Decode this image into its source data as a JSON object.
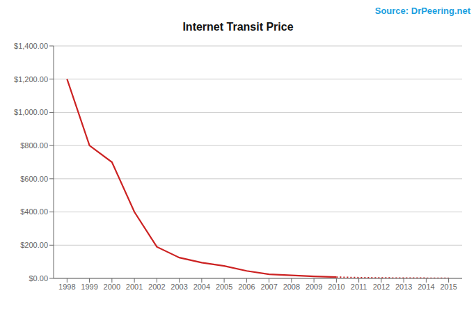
{
  "chart_data": {
    "type": "line",
    "title": "Internet Transit Price",
    "annotations": [
      {
        "text": "Source: DrPeering.net",
        "color": "#1a9fe0"
      }
    ],
    "x": [
      1998,
      1999,
      2000,
      2001,
      2002,
      2003,
      2004,
      2005,
      2006,
      2007,
      2008,
      2009,
      2010,
      2011,
      2012,
      2013,
      2014,
      2015
    ],
    "series": [
      {
        "color": "#cc2222",
        "line_style": "solid",
        "values": [
          1200,
          800,
          700,
          400,
          190,
          125,
          95,
          75,
          45,
          25,
          18,
          12,
          8,
          null,
          null,
          null,
          null,
          null
        ]
      },
      {
        "color": "#cc2222",
        "line_style": "dotted",
        "values": [
          null,
          null,
          null,
          null,
          null,
          null,
          null,
          null,
          null,
          null,
          null,
          null,
          8,
          5,
          3.5,
          2.5,
          2.0,
          1.5
        ]
      }
    ],
    "xlim": [
      1997.4,
      2015.6
    ],
    "xticks": [
      1998,
      1999,
      2000,
      2001,
      2002,
      2003,
      2004,
      2005,
      2006,
      2007,
      2008,
      2009,
      2010,
      2011,
      2012,
      2013,
      2014,
      2015
    ],
    "ylim": [
      0,
      1400
    ],
    "yticks": [
      {
        "value": 0,
        "label": "$0.00"
      },
      {
        "value": 200,
        "label": "$200.00"
      },
      {
        "value": 400,
        "label": "$400.00"
      },
      {
        "value": 600,
        "label": "$600.00"
      },
      {
        "value": 800,
        "label": "$800.00"
      },
      {
        "value": 1000,
        "label": "$1,000.00"
      },
      {
        "value": 1200,
        "label": "$1,200.00"
      },
      {
        "value": 1400,
        "label": "$1,400.00"
      }
    ],
    "grid": true,
    "legend": false
  }
}
